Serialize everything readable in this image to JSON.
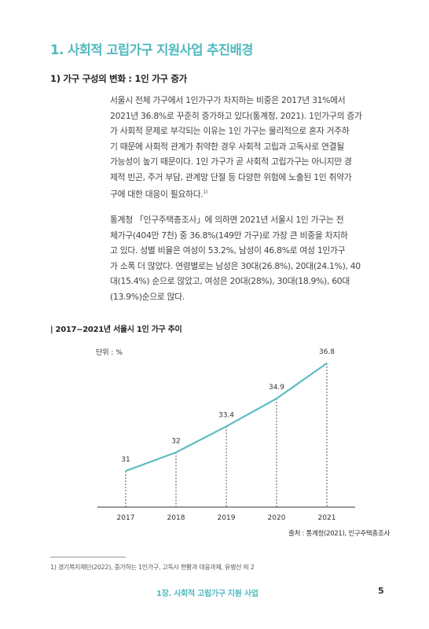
{
  "heading": "1. 사회적 고립가구 지원사업 추진배경",
  "subheading": "1) 가구 구성의 변화 : 1인 가구 증가",
  "paragraph1": [
    "서울시 전체 가구에서 1인가구가 차지하는 비중은 2017년 31%에서",
    "2021년 36.8%로 꾸준히 증가하고 있다(통계청, 2021). 1인가구의 증가",
    "가 사회적 문제로 부각되는 이유는 1인 가구는 물리적으로 혼자 거주하",
    "기 때문에 사회적 관계가 취약한 경우 사회적 고립과 고독사로 연결될",
    "가능성이 높기 때문이다. 1인 가구가 곧 사회적 고립가구는 아니지만 경",
    "제적 빈곤, 주거 부담, 관계망 단절 등 다양한 위험에 노출된 1인 취약가",
    "구에 대한 대응이 필요하다."
  ],
  "paragraph1_footnote_ref": "1)",
  "paragraph2": [
    "통계청 「인구주택총조사」에 의하면 2021년 서울시 1인 가구는 전",
    "체가구(404만 7천) 중 36.8%(149만 가구)로 가장 큰 비중을 차지하",
    "고 있다. 성별 비율은 여성이 53.2%, 남성이 46.8%로 여성 1인가구",
    "가 소폭 더 많았다. 연령별로는 남성은 30대(26.8%), 20대(24.1%), 40",
    "대(15.4%) 순으로 많았고, 여성은 20대(28%), 30대(18.9%), 60대",
    "(13.9%)순으로 많다."
  ],
  "chart_data": {
    "type": "line",
    "title": "2017~2021년 서울시 1인 가구 추이",
    "title_prefix": "|",
    "unit_label": "단위 : %",
    "x": [
      "2017",
      "2018",
      "2019",
      "2020",
      "2021"
    ],
    "series": [
      {
        "values": [
          31,
          32,
          33.4,
          34.9,
          36.8
        ],
        "labels": [
          "31",
          "32",
          "33.4",
          "34.9",
          "36.8"
        ],
        "color": "#5bbcc4"
      }
    ],
    "source": "출처 : 통계청(2021), 인구주택총조사"
  },
  "footnote": "1) 경기복지재단(2022), 증가하는 1인가구, 고독사 현황과 대응과제, 유병선 외 2",
  "footer": {
    "chapter": "1장. 사회적 고립가구 지원 사업",
    "page_number": "5"
  },
  "colors": {
    "accent": "#4fb9c0",
    "line": "#5bbcc4"
  }
}
